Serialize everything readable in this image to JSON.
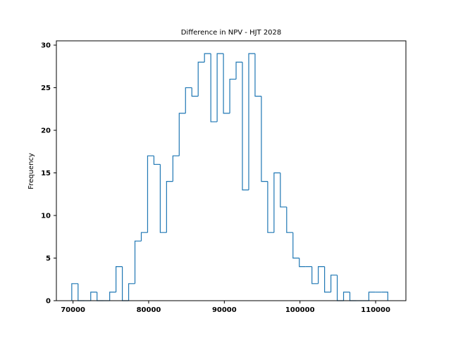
{
  "chart_data": {
    "type": "histogram",
    "title": "Difference in NPV - HJT 2028",
    "xlabel": "",
    "ylabel": "Frequency",
    "xlim": [
      67800,
      114000
    ],
    "ylim": [
      0,
      30.5
    ],
    "xticks": [
      70000,
      80000,
      90000,
      100000,
      110000
    ],
    "yticks": [
      0,
      5,
      10,
      15,
      20,
      25,
      30
    ],
    "grid": false,
    "style": "step",
    "series_color": "#1f77b4",
    "bin_start": 69833,
    "bin_width": 835.5,
    "counts": [
      2,
      0,
      0,
      1,
      0,
      0,
      1,
      4,
      0,
      2,
      7,
      8,
      17,
      16,
      8,
      14,
      17,
      22,
      25,
      24,
      28,
      29,
      21,
      29,
      22,
      26,
      28,
      13,
      29,
      24,
      14,
      8,
      15,
      11,
      8,
      5,
      4,
      4,
      2,
      4,
      1,
      3,
      0,
      1,
      0,
      0,
      0,
      1,
      1,
      1
    ]
  }
}
